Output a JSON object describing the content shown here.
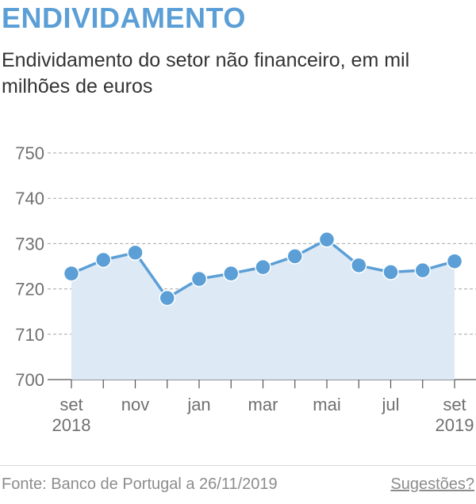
{
  "header": {
    "title": "ENDIVIDAMENTO",
    "subtitle": "Endividamento do setor não financeiro, em mil milhões de euros"
  },
  "footer": {
    "source": "Fonte: Banco de Portugal a 26/11/2019",
    "suggest_link": "Sugestões?"
  },
  "colors": {
    "accent": "#5b9fd6",
    "area_fill": "#dde9f5",
    "grid": "#a6a6a6"
  },
  "chart_data": {
    "type": "area",
    "x": [
      "2018-09",
      "2018-10",
      "2018-11",
      "2018-12",
      "2019-01",
      "2019-02",
      "2019-03",
      "2019-04",
      "2019-05",
      "2019-06",
      "2019-07",
      "2019-08",
      "2019-09"
    ],
    "series": [
      {
        "values": [
          723.4,
          726.4,
          728.0,
          718.0,
          722.2,
          723.4,
          724.8,
          727.2,
          730.9,
          725.2,
          723.7,
          724.1,
          726.1
        ]
      }
    ],
    "ylim": [
      700,
      750
    ],
    "yticks": [
      700,
      710,
      720,
      730,
      740,
      750
    ],
    "x_tick_labels": [
      {
        "index": 0,
        "line1": "set",
        "line2": "2018"
      },
      {
        "index": 2,
        "line1": "nov",
        "line2": ""
      },
      {
        "index": 4,
        "line1": "jan",
        "line2": ""
      },
      {
        "index": 6,
        "line1": "mar",
        "line2": ""
      },
      {
        "index": 8,
        "line1": "mai",
        "line2": ""
      },
      {
        "index": 10,
        "line1": "jul",
        "line2": ""
      },
      {
        "index": 12,
        "line1": "set",
        "line2": "2019"
      }
    ],
    "grid": true,
    "legend": "none"
  }
}
